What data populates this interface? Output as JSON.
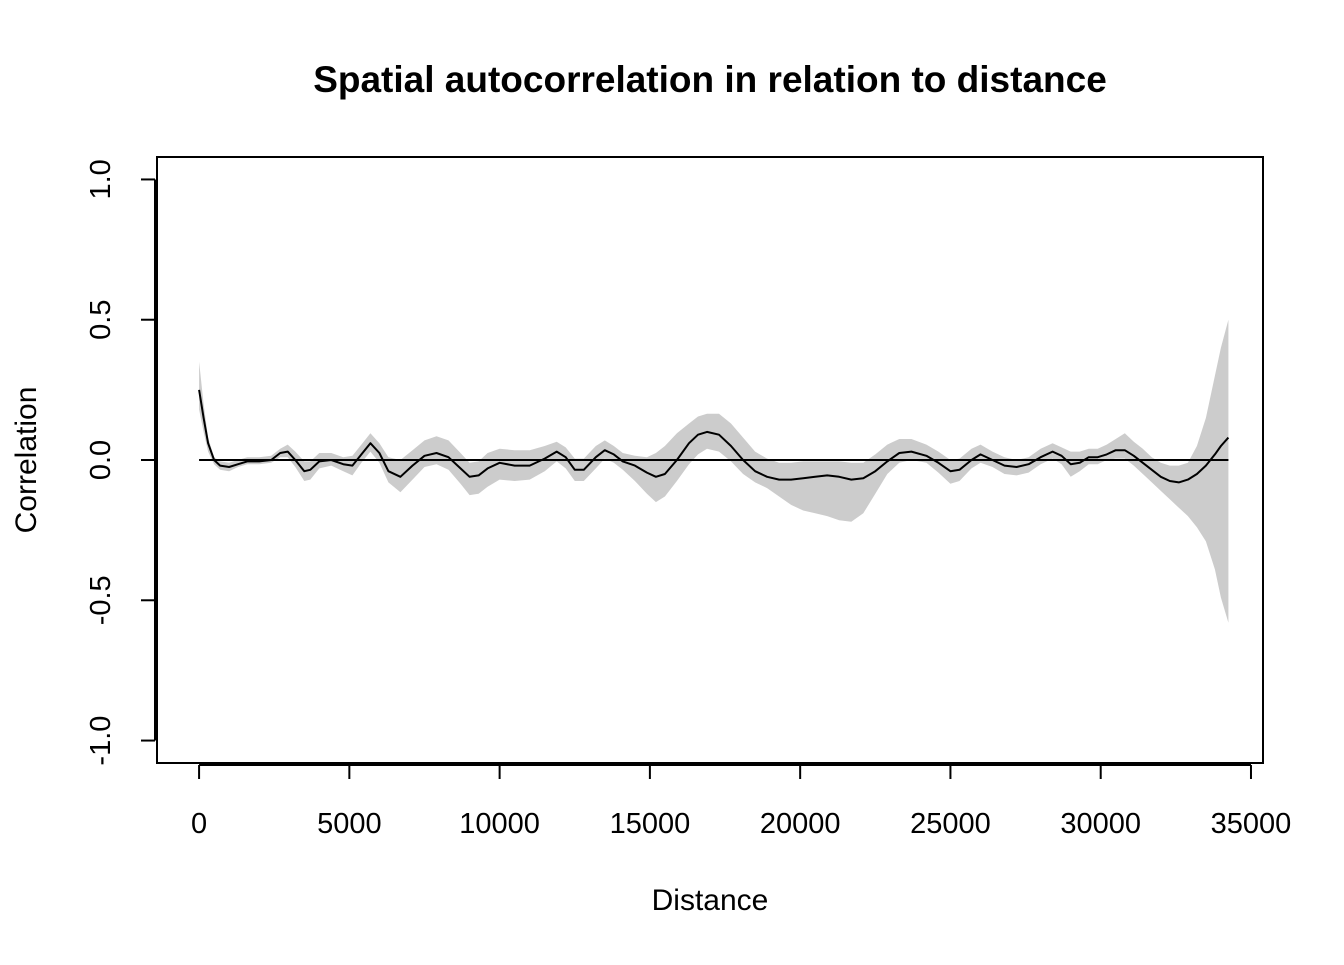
{
  "chart_data": {
    "type": "line",
    "title": "Spatial autocorrelation in relation to distance",
    "xlabel": "Distance",
    "ylabel": "Correlation",
    "xlim": [
      -1400,
      35400
    ],
    "ylim": [
      -1.08,
      1.08
    ],
    "x_ticks": [
      0,
      5000,
      10000,
      15000,
      20000,
      25000,
      30000,
      35000
    ],
    "x_tick_labels": [
      "0",
      "5000",
      "10000",
      "15000",
      "20000",
      "25000",
      "30000",
      "35000"
    ],
    "y_ticks": [
      -1.0,
      -0.5,
      0.0,
      0.5,
      1.0
    ],
    "y_tick_labels": [
      "-1.0",
      "-0.5",
      "0.0",
      "0.5",
      "1.0"
    ],
    "grid": false,
    "legend": "none",
    "colors": {
      "band": "#cccccc",
      "line": "#000000"
    },
    "reference_line": {
      "y": 0.0,
      "x_range": [
        0,
        34250
      ]
    },
    "series": [
      {
        "x": [
          0,
          150,
          300,
          500,
          700,
          1000,
          1300,
          1600,
          2000,
          2400,
          2700,
          2950,
          3200,
          3500,
          3700,
          4000,
          4400,
          4800,
          5100,
          5400,
          5700,
          6000,
          6300,
          6700,
          7100,
          7500,
          7900,
          8300,
          8700,
          9000,
          9300,
          9600,
          10000,
          10500,
          11000,
          11500,
          11900,
          12200,
          12500,
          12800,
          13200,
          13500,
          13800,
          14100,
          14500,
          14900,
          15200,
          15500,
          15900,
          16300,
          16600,
          16900,
          17300,
          17700,
          18100,
          18500,
          18900,
          19300,
          19700,
          20100,
          20500,
          20900,
          21300,
          21700,
          22100,
          22500,
          22900,
          23300,
          23700,
          24200,
          24600,
          25000,
          25300,
          25700,
          26000,
          26400,
          26800,
          27200,
          27600,
          28000,
          28400,
          28700,
          29000,
          29300,
          29600,
          29900,
          30200,
          30500,
          30800,
          31100,
          31400,
          31700,
          32000,
          32300,
          32600,
          32900,
          33200,
          33500,
          33800,
          34000,
          34250
        ],
        "y": [
          0.25,
          0.15,
          0.06,
          0.0,
          -0.02,
          -0.025,
          -0.015,
          -0.005,
          -0.005,
          0.0,
          0.025,
          0.03,
          0.0,
          -0.04,
          -0.035,
          -0.005,
          0.0,
          -0.015,
          -0.02,
          0.02,
          0.06,
          0.025,
          -0.04,
          -0.06,
          -0.02,
          0.015,
          0.025,
          0.01,
          -0.03,
          -0.06,
          -0.055,
          -0.03,
          -0.01,
          -0.02,
          -0.02,
          0.005,
          0.03,
          0.01,
          -0.035,
          -0.035,
          0.01,
          0.035,
          0.02,
          -0.005,
          -0.02,
          -0.045,
          -0.06,
          -0.05,
          0.0,
          0.06,
          0.09,
          0.1,
          0.09,
          0.05,
          0.0,
          -0.04,
          -0.06,
          -0.07,
          -0.07,
          -0.065,
          -0.06,
          -0.055,
          -0.06,
          -0.07,
          -0.065,
          -0.04,
          -0.005,
          0.025,
          0.03,
          0.015,
          -0.01,
          -0.04,
          -0.035,
          0.0,
          0.02,
          0.0,
          -0.02,
          -0.025,
          -0.015,
          0.01,
          0.03,
          0.015,
          -0.015,
          -0.01,
          0.01,
          0.01,
          0.02,
          0.035,
          0.035,
          0.015,
          -0.01,
          -0.035,
          -0.06,
          -0.075,
          -0.08,
          -0.07,
          -0.05,
          -0.02,
          0.02,
          0.05,
          0.08
        ]
      }
    ],
    "band": {
      "x": [
        0,
        150,
        300,
        500,
        700,
        1000,
        1300,
        1600,
        2000,
        2400,
        2700,
        2950,
        3200,
        3500,
        3700,
        4000,
        4400,
        4800,
        5100,
        5400,
        5700,
        6000,
        6300,
        6700,
        7100,
        7500,
        7900,
        8300,
        8700,
        9000,
        9300,
        9600,
        10000,
        10500,
        11000,
        11500,
        11900,
        12200,
        12500,
        12800,
        13200,
        13500,
        13800,
        14100,
        14500,
        14900,
        15200,
        15500,
        15900,
        16300,
        16600,
        16900,
        17300,
        17700,
        18100,
        18500,
        18900,
        19300,
        19700,
        20100,
        20500,
        20900,
        21300,
        21700,
        22100,
        22500,
        22900,
        23300,
        23700,
        24200,
        24600,
        25000,
        25300,
        25700,
        26000,
        26400,
        26800,
        27200,
        27600,
        28000,
        28400,
        28700,
        29000,
        29300,
        29600,
        29900,
        30200,
        30500,
        30800,
        31100,
        31400,
        31700,
        32000,
        32300,
        32600,
        32900,
        33200,
        33500,
        33800,
        34000,
        34250
      ],
      "lower": [
        0.18,
        0.1,
        0.03,
        -0.015,
        -0.035,
        -0.04,
        -0.025,
        -0.015,
        -0.015,
        -0.01,
        0.01,
        0.01,
        -0.025,
        -0.075,
        -0.07,
        -0.03,
        -0.02,
        -0.04,
        -0.055,
        -0.01,
        0.03,
        -0.01,
        -0.08,
        -0.115,
        -0.07,
        -0.025,
        -0.015,
        -0.035,
        -0.085,
        -0.125,
        -0.12,
        -0.095,
        -0.07,
        -0.075,
        -0.07,
        -0.04,
        -0.005,
        -0.03,
        -0.075,
        -0.075,
        -0.03,
        0.005,
        -0.01,
        -0.035,
        -0.075,
        -0.12,
        -0.15,
        -0.13,
        -0.075,
        -0.015,
        0.02,
        0.04,
        0.03,
        -0.005,
        -0.05,
        -0.08,
        -0.1,
        -0.13,
        -0.16,
        -0.18,
        -0.19,
        -0.2,
        -0.215,
        -0.22,
        -0.19,
        -0.12,
        -0.05,
        -0.01,
        0.0,
        -0.01,
        -0.045,
        -0.085,
        -0.075,
        -0.03,
        -0.01,
        -0.025,
        -0.05,
        -0.055,
        -0.045,
        -0.015,
        0.005,
        -0.015,
        -0.06,
        -0.04,
        -0.015,
        -0.015,
        0.0,
        0.005,
        0.005,
        -0.02,
        -0.05,
        -0.08,
        -0.11,
        -0.14,
        -0.17,
        -0.2,
        -0.24,
        -0.29,
        -0.39,
        -0.49,
        -0.58
      ],
      "upper": [
        0.35,
        0.2,
        0.08,
        0.01,
        -0.005,
        -0.01,
        0.0,
        0.01,
        0.01,
        0.015,
        0.04,
        0.055,
        0.03,
        -0.005,
        -0.005,
        0.025,
        0.025,
        0.01,
        0.015,
        0.055,
        0.095,
        0.06,
        0.01,
        0.0,
        0.035,
        0.07,
        0.085,
        0.07,
        0.025,
        -0.01,
        -0.005,
        0.025,
        0.04,
        0.035,
        0.035,
        0.05,
        0.065,
        0.045,
        0.005,
        0.005,
        0.05,
        0.07,
        0.05,
        0.025,
        0.015,
        0.01,
        0.025,
        0.05,
        0.095,
        0.13,
        0.155,
        0.165,
        0.165,
        0.13,
        0.08,
        0.03,
        0.005,
        -0.01,
        -0.01,
        -0.005,
        -0.005,
        -0.005,
        -0.005,
        -0.01,
        -0.01,
        0.02,
        0.055,
        0.075,
        0.075,
        0.055,
        0.03,
        0.0,
        0.005,
        0.04,
        0.055,
        0.03,
        0.01,
        0.0,
        0.01,
        0.04,
        0.06,
        0.045,
        0.03,
        0.03,
        0.04,
        0.04,
        0.055,
        0.075,
        0.095,
        0.065,
        0.04,
        0.01,
        -0.01,
        -0.02,
        -0.02,
        -0.01,
        0.05,
        0.15,
        0.3,
        0.4,
        0.5
      ]
    }
  }
}
